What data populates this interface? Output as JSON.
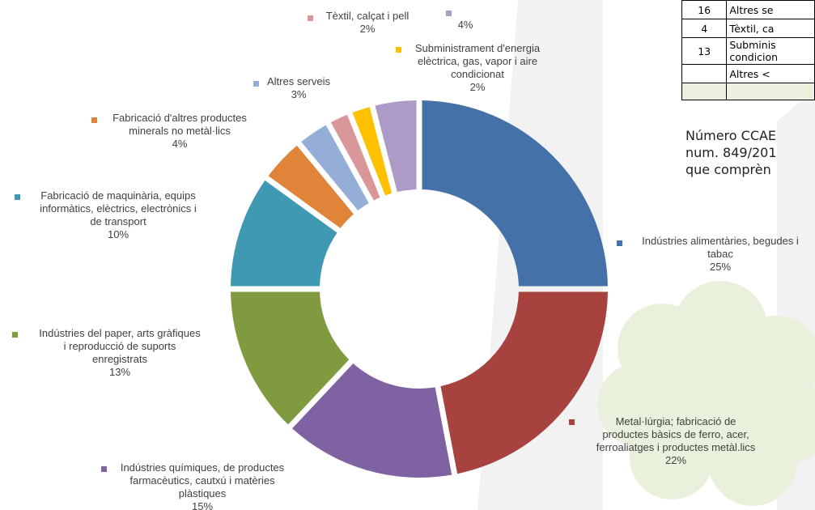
{
  "chart_data": {
    "type": "pie",
    "donut": true,
    "categories": [
      "Indústries alimentàries, begudes i tabac",
      "Metal·lúrgia; fabricació de productes bàsics de ferro, acer, ferroaliatges i productes metàl.lics",
      "Indústries químiques, de productes farmacèutics, cautxú i matèries plàstiques",
      "Indústries del paper, arts gràfiques i reproducció de suports enregistrats",
      "Fabricació de maquinària, equips informàtics, elèctrics, electrònics i de transport",
      "Fabricació d'altres productes minerals no metàl·lics",
      "Altres serveis",
      "Tèxtil, calçat i pell",
      "Subministrament d'energia elèctrica, gas, vapor i aire condicionat",
      ""
    ],
    "values": [
      25,
      22,
      15,
      13,
      10,
      4,
      3,
      2,
      2,
      4
    ],
    "value_labels": [
      "25%",
      "22%",
      "15%",
      "13%",
      "10%",
      "4%",
      "3%",
      "2%",
      "2%",
      "4%"
    ],
    "colors": [
      "#4472a8",
      "#a8423f",
      "#7f62a1",
      "#7f9a3f",
      "#3f99b3",
      "#e0843a",
      "#94aed8",
      "#d9979a",
      "#ffc000",
      "#ac9bc7"
    ],
    "label_lines": [
      [
        "Indústries alimentàries, begudes i",
        "tabac"
      ],
      [
        "Metal·lúrgia; fabricació de",
        "productes bàsics de ferro, acer,",
        "ferroaliatges i  productes metàl.lics"
      ],
      [
        "Indústries químiques, de productes",
        "farmacèutics, cautxú i matèries",
        "plàstiques"
      ],
      [
        "Indústries del paper, arts gràfiques",
        "i reproducció de suports",
        "enregistrats"
      ],
      [
        "Fabricació de maquinària, equips",
        "informàtics, elèctrics, electrònics i",
        "de transport"
      ],
      [
        "Fabricació d'altres productes",
        "minerals no metàl·lics"
      ],
      [
        "Altres serveis"
      ],
      [
        "Tèxtil, calçat i pell"
      ],
      [
        "Subministrament d'energia",
        "elèctrica, gas, vapor i aire",
        "condicionat"
      ],
      [
        ""
      ]
    ],
    "title": ""
  },
  "side_table": {
    "rows": [
      {
        "code": "16",
        "text": "Altres se"
      },
      {
        "code": "4",
        "text": "Tèxtil, ca"
      },
      {
        "code": "13",
        "text": "Subminis",
        "text2": "condicion"
      },
      {
        "code": "",
        "text": "Altres <"
      },
      {
        "code": "",
        "text": ""
      }
    ]
  },
  "note": {
    "lines": [
      "Número CCAE",
      "num. 849/201",
      "que comprèn"
    ]
  }
}
